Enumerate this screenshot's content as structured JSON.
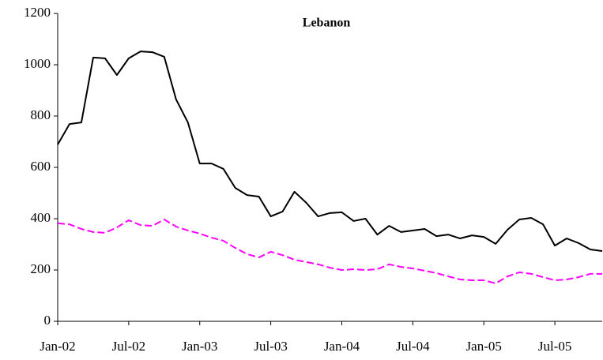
{
  "chart_data": {
    "type": "line",
    "title": "Lebanon",
    "categories": [
      "Jan-02",
      null,
      null,
      null,
      null,
      null,
      "Jul-02",
      null,
      null,
      null,
      null,
      null,
      "Jan-03",
      null,
      null,
      null,
      null,
      null,
      "Jul-03",
      null,
      null,
      null,
      null,
      null,
      "Jan-04",
      null,
      null,
      null,
      null,
      null,
      "Jul-04",
      null,
      null,
      null,
      null,
      null,
      "Jan-05",
      null,
      null,
      null,
      null,
      null,
      "Jul-05",
      null,
      null,
      null,
      null
    ],
    "series": [
      {
        "color": "#000000",
        "dash": false,
        "values": [
          689,
          769,
          775,
          1028,
          1025,
          960,
          1025,
          1052,
          1049,
          1031,
          865,
          775,
          615,
          615,
          594,
          520,
          492,
          486,
          409,
          428,
          505,
          462,
          409,
          422,
          425,
          391,
          400,
          338,
          372,
          348,
          354,
          360,
          332,
          338,
          323,
          335,
          329,
          302,
          357,
          397,
          403,
          378,
          295,
          323,
          305,
          280,
          274
        ]
      },
      {
        "color": "#ff00ff",
        "dash": true,
        "values": [
          382,
          378,
          360,
          348,
          345,
          366,
          394,
          375,
          372,
          397,
          369,
          354,
          342,
          326,
          314,
          286,
          262,
          249,
          271,
          258,
          240,
          231,
          222,
          209,
          200,
          203,
          200,
          203,
          222,
          212,
          206,
          197,
          188,
          175,
          163,
          160,
          160,
          148,
          175,
          191,
          185,
          172,
          160,
          163,
          172,
          185,
          185
        ]
      }
    ],
    "ylim": [
      0,
      1200
    ],
    "yticks": [
      0,
      200,
      400,
      600,
      800,
      1000,
      1200
    ],
    "grid": false
  }
}
